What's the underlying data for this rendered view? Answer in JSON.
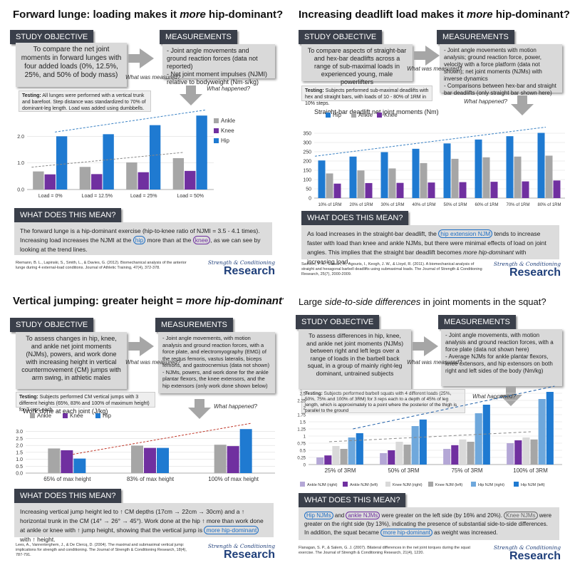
{
  "colors": {
    "ankle": "#a6a6a6",
    "knee": "#7030a0",
    "hip": "#1f7ad1",
    "header": "#3a3f4a",
    "box": "#d9d9d9"
  },
  "icons": {
    "arrow_right": "arrow-right-icon",
    "arrow_down": "arrow-down-icon"
  },
  "shared": {
    "study_objective": "STUDY OBJECTIVE",
    "measurements": "MEASUREMENTS",
    "what_does": "WHAT DOES THIS MEAN?",
    "what_measured": "What was measured?",
    "what_happened": "What happened?",
    "logo1": "Strength & Conditioning",
    "logo2": "Research"
  },
  "p0": {
    "title_a": "Forward lunge: loading makes it ",
    "title_em": "more",
    "title_b": " hip-dominant?",
    "objective": "To compare the net joint moments in forward lunges with four added loads (0%, 12.5%, 25%, and 50% of body mass)",
    "measurements": "- Joint angle movements and ground reaction forces (data not reported)\n- Net joint moment impulses (NJMI) relative to bodyweight (Nm·s/kg)",
    "testing_label": "Testing:",
    "testing": " All lunges were performed with a vertical trunk and barefoot. Step distance was standardized to 70% of dominant-leg length. Load was added using dumbbells.",
    "meaning_a": "The forward lunge is a hip-dominant exercise (hip-to-knee ratio of NJMI = 3.5 - 4.1 times). Increasing load increases the NJMI at the ",
    "meaning_hip": "hip",
    "meaning_b": " more than at the ",
    "meaning_knee": "knee",
    "meaning_c": ", as we can see by looking at the trend lines.",
    "citation": "Riemann, B. L., Lapinski, S., Smith, L., & Davies, G. (2012). Biomechanical analysis of the anterior lunge during 4 external-load conditions. Journal of Athletic Training, 47(4), 372-378."
  },
  "p1": {
    "title_a": "Increasing deadlift load makes it ",
    "title_em": "more",
    "title_b": " hip-dominant?",
    "objective": "To compare aspects of straight-bar and hex-bar deadlifts across a range of sub-maximal loads in experienced young, male powerlifters",
    "measurements": "- Joint angle movements with motion analysis; ground reaction force, power, velocity with a force platform (data not shown); net joint moments (NJMs) with inverse dynamics\n- Comparisons between hex-bar and straight bar deadlifts (only straight bar shown here)",
    "testing_label": "Testing:",
    "testing": " Subjects performed sub-maximal deadlifts with hex and straight bars, with loads of 10 - 80% of 1RM in 10% steps.",
    "meaning_a": "As load increases in the straight-bar deadlift, the ",
    "meaning_hip": "hip extension NJM",
    "meaning_b": " tends to increase faster with load than knee and ankle NJMs, but there were minimal effects of load on joint angles. This implies that the straight bar deadlift becomes ",
    "meaning_em": "more hip-dominant",
    "meaning_c": " with increasing load.",
    "citation": "Swinton, P. A., Stewart, A., Agouris, I., Keogh, J. W., & Lloyd, R. (2011). A biomechanical analysis of straight and hexagonal barbell deadlifts using submaximal loads. The Journal of Strength & Conditioning Research, 25(7), 2000-2009."
  },
  "p2": {
    "title_a": "Vertical jumping: greater height = ",
    "title_em": "more hip-dominant",
    "title_b": "?",
    "objective": "To assess changes in hip, knee, and ankle net joint moments (NJMs), powers, and work done with increasing height in vertical countermovement (CM) jumps with arm swing, in athletic males",
    "measurements": "- Joint angle movements, with motion analysis and ground reaction forces, with a force plate, and electromyography (EMG) of the rectus femoris, vastus lateralis, biceps femoris, and gastrocnemius (data not shown)\n- NJMs, powers, and work done for the ankle plantar flexors, the knee extensors, and the hip extensors (only work done shown below)",
    "testing_label": "Testing:",
    "testing": " Subjects performed CM vertical jumps with 3 different heights (65%, 83% and 100% of maximum height) for 3 reps each.",
    "meaning_a": "Increasing vertical jump height led to ↑ CM depths (17cm → 22cm → 30cm) and a ↑ horizontal trunk in the CM (14° → 26° → 45°). Work done at the hip ↑ more than work done at ankle or knee with ↑ jump height, showing that the vertical jump is ",
    "meaning_hip": "more hip-dominant",
    "meaning_b": " with ↑ height.",
    "citation": "Lees, A., Vanrenterghem, J., & De Clercq, D. (2004). The maximal and submaximal vertical jump: implications for strength and conditioning. The Journal of Strength & Conditioning Research, 18(4), 787-791."
  },
  "p3": {
    "title_a": "Large ",
    "title_em": "side-to-side differences",
    "title_b": " in joint moments in the squat?",
    "objective": "To assess differences in hip, knee, and ankle net joint moments (NJMs) between right and left legs over a range of loads in the barbell back squat, in a group of mainly right-leg dominant, untrained subjects",
    "measurements": "- Joint angle movements, with motion analysis and ground reaction forces, with a force plate (data not shown here)\n- Average NJMs for ankle plantar flexors, knee extensors, and hip extensors on both right and left sides of the body (Nm/kg)",
    "testing_label": "Testing:",
    "testing": " Subjects performed barbell squats with 4 different loads (25%, 50%, 75% and 100% of 3RM) for 3 reps each to a depth of 45% of leg length, which is approximately to a point where the posterior of the thigh is parallel to the ground",
    "meaning_hip": "Hip NJMs",
    "meaning_a": " and ",
    "meaning_ankle": "ankle NJMs",
    "meaning_b": " were greater on the left side (by 16% and 20%). ",
    "meaning_knee": "Knee NJMs",
    "meaning_c": " were greater on the right side (by 13%), indicating the presence of substantial side-to-side differences. In addition, the squat became ",
    "meaning_hd": "more hip-dominant",
    "meaning_d": " as weight was increased.",
    "citation": "Flanagan, S. P., & Salem, G. J. (2007). Bilateral differences in the net joint torques during the squat exercise. The Journal of Strength & Conditioning Research, 21(4), 1220."
  },
  "chart_data": [
    {
      "type": "bar",
      "categories": [
        "Load = 0%",
        "Load = 12.5%",
        "Load = 25%",
        "Load = 50%"
      ],
      "series": [
        {
          "name": "Ankle",
          "values": [
            0.68,
            0.85,
            1.02,
            1.18
          ]
        },
        {
          "name": "Knee",
          "values": [
            0.57,
            0.58,
            0.65,
            0.7
          ]
        },
        {
          "name": "Hip",
          "values": [
            2.0,
            2.08,
            2.42,
            2.78
          ]
        }
      ],
      "title": "",
      "xlabel": "",
      "ylabel": "",
      "ylim": [
        0,
        3.0
      ],
      "yticks": [
        "0.0",
        "1.0",
        "2.0"
      ],
      "legend": "right"
    },
    {
      "type": "bar",
      "categories": [
        "10% of 1RM",
        "20% of 1RM",
        "30% of 1RM",
        "40% of 1RM",
        "50% of 1RM",
        "60% of 1RM",
        "70% of 1RM",
        "80% of 1RM"
      ],
      "series": [
        {
          "name": "Hip",
          "values": [
            203,
            224,
            248,
            266,
            295,
            316,
            334,
            352
          ]
        },
        {
          "name": "Ankle",
          "values": [
            133,
            149,
            160,
            189,
            212,
            220,
            224,
            229
          ]
        },
        {
          "name": "Knee",
          "values": [
            78,
            81,
            82,
            84,
            86,
            88,
            90,
            95
          ]
        }
      ],
      "title": "Straight-bar deadlift net joint moments (Nm)",
      "xlabel": "",
      "ylabel": "",
      "ylim": [
        0,
        400
      ],
      "yticks": [
        "0",
        "50",
        "100",
        "150",
        "200",
        "250",
        "300",
        "350"
      ],
      "legend": "top"
    },
    {
      "type": "bar",
      "categories": [
        "65% of max height",
        "83% of max height",
        "100% of max height"
      ],
      "series": [
        {
          "name": "Ankle",
          "values": [
            1.78,
            1.98,
            2.05
          ]
        },
        {
          "name": "Knee",
          "values": [
            1.65,
            1.82,
            1.95
          ]
        },
        {
          "name": "Hip",
          "values": [
            1.05,
            1.82,
            3.18
          ]
        }
      ],
      "title": "Work done at each joint (J/kg)",
      "xlabel": "",
      "ylabel": "",
      "ylim": [
        0,
        3.5
      ],
      "yticks": [
        "0.0",
        "0.5",
        "1.0",
        "1.5",
        "2.0",
        "2.5",
        "3.0"
      ],
      "legend": "top"
    },
    {
      "type": "bar",
      "categories": [
        "25% of 3RM",
        "50% of 3RM",
        "75% of 3RM",
        "100% of 3RM"
      ],
      "series": [
        {
          "name": "Ankle NJM (right)",
          "values": [
            0.25,
            0.4,
            0.55,
            0.75
          ]
        },
        {
          "name": "Ankle NJM (left)",
          "values": [
            0.32,
            0.5,
            0.68,
            0.85
          ]
        },
        {
          "name": "Knee NJM (right)",
          "values": [
            0.65,
            0.8,
            0.88,
            0.95
          ]
        },
        {
          "name": "Knee NJM (left)",
          "values": [
            0.55,
            0.7,
            0.8,
            0.88
          ]
        },
        {
          "name": "Hip NJM (right)",
          "values": [
            0.95,
            1.35,
            1.8,
            2.3
          ]
        },
        {
          "name": "Hip NJM (left)",
          "values": [
            1.1,
            1.58,
            2.1,
            2.55
          ]
        }
      ],
      "title": "",
      "xlabel": "",
      "ylabel": "",
      "ylim": [
        0,
        2.5
      ],
      "yticks": [
        "0",
        "0.25",
        "0.5",
        "0.75",
        "1",
        "1.25",
        "1.5",
        "1.75",
        "2",
        "2.25",
        "2.5"
      ],
      "legend": "bottom"
    }
  ]
}
